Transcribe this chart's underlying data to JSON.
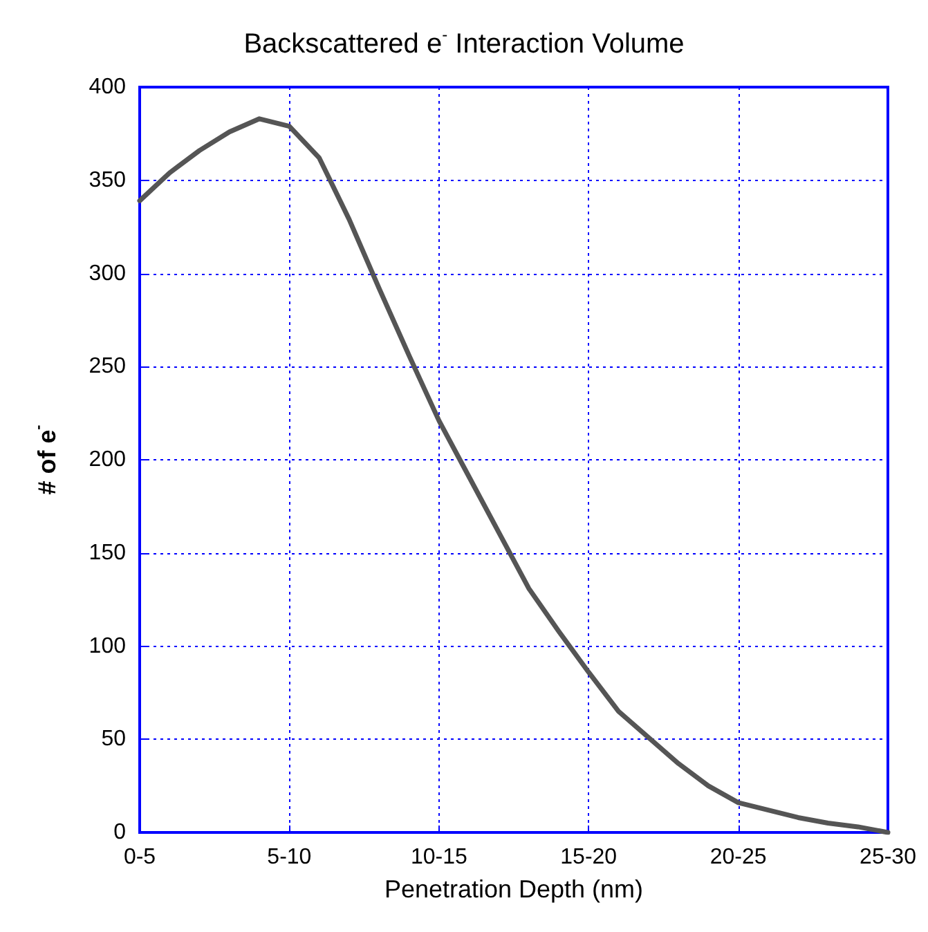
{
  "chart_data": {
    "type": "line",
    "title": "Backscattered e$^{-}$ Interaction Volume",
    "xlabel": "Penetration Depth (nm)",
    "ylabel": "# of e$^{-}$",
    "categories": [
      "0-5",
      null,
      null,
      null,
      null,
      "5-10",
      null,
      null,
      null,
      null,
      "10-15",
      null,
      null,
      null,
      null,
      "15-20",
      null,
      null,
      null,
      null,
      "20-25",
      null,
      null,
      null,
      null,
      "25-30"
    ],
    "ylim": [
      0,
      400
    ],
    "yticks": [
      0,
      50,
      100,
      150,
      200,
      250,
      300,
      350,
      400
    ],
    "grid": true,
    "marker": "none",
    "line_style": "solid",
    "series": [
      {
        "color": "#555555",
        "values": [
          339,
          354,
          366,
          376,
          383,
          379,
          362,
          329,
          292,
          256,
          221,
          191,
          161,
          131,
          108,
          86,
          65,
          51,
          37,
          25,
          16,
          12,
          8,
          5,
          3,
          0
        ]
      }
    ]
  }
}
